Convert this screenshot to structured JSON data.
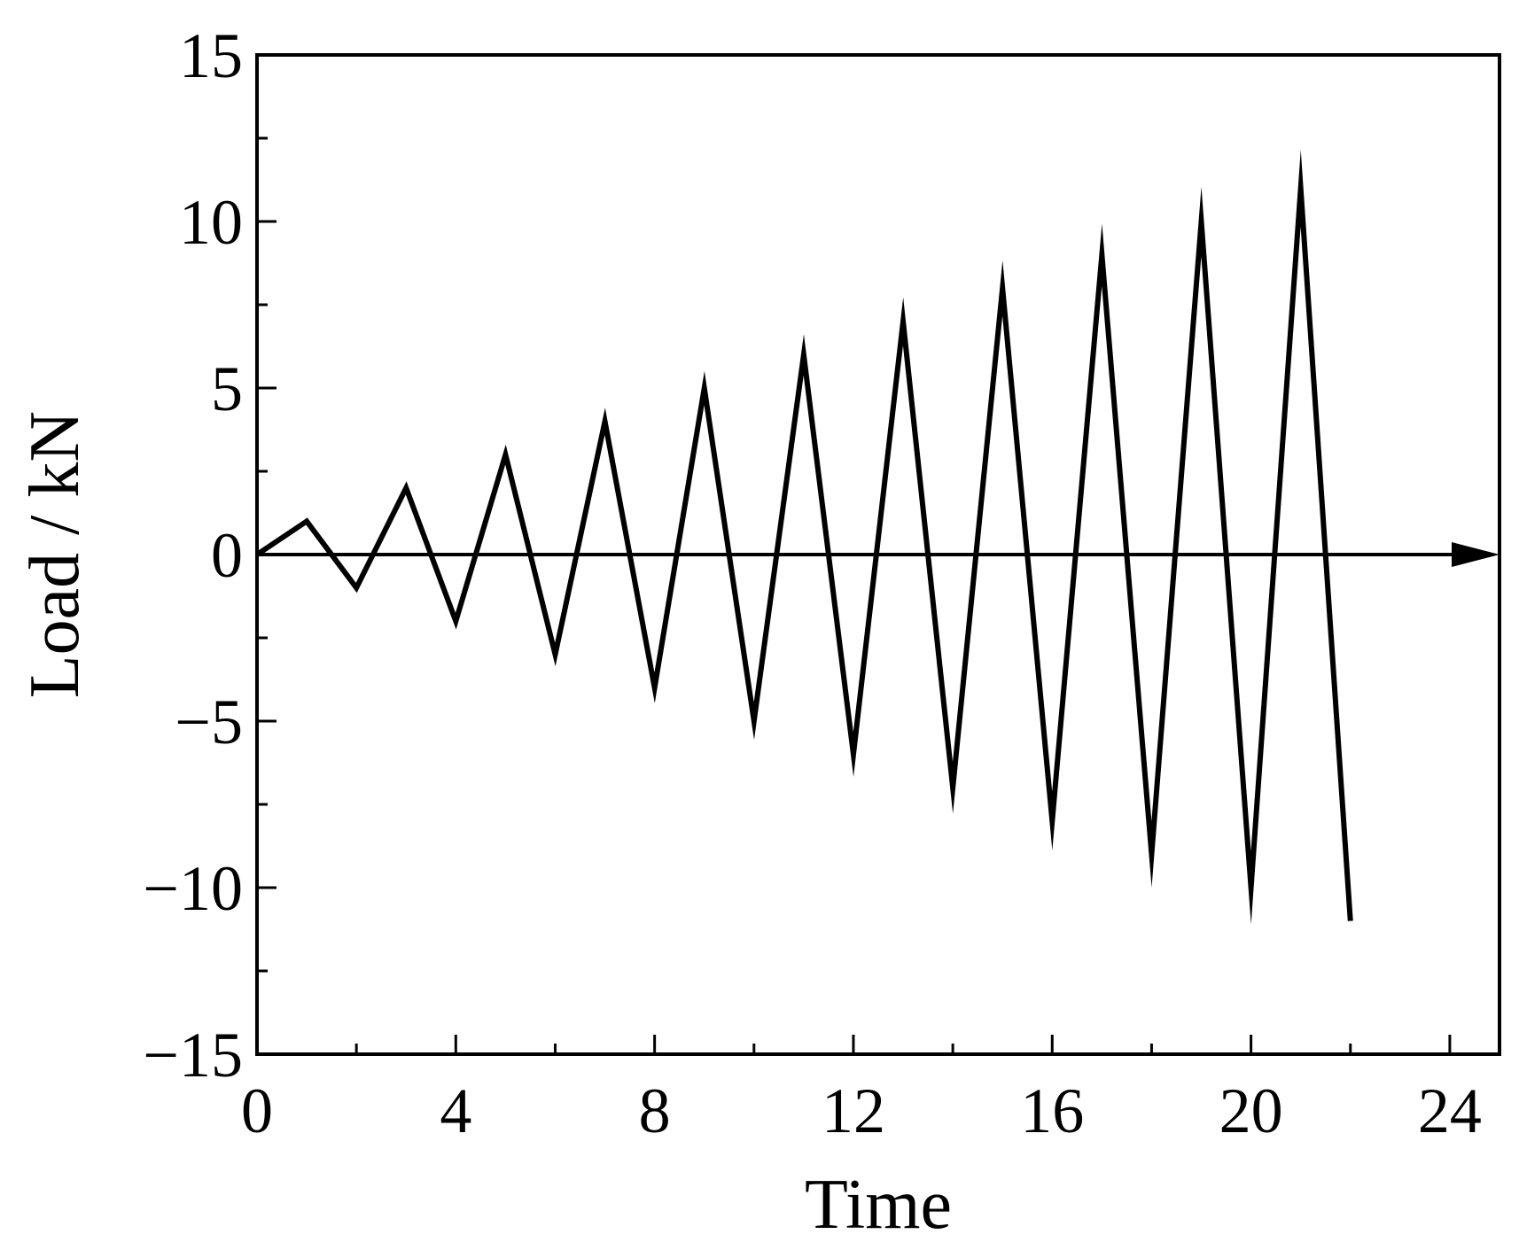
{
  "chart_data": {
    "type": "line",
    "title": "",
    "xlabel": "Time",
    "ylabel": "Load / kN",
    "xlim": [
      0,
      25
    ],
    "ylim": [
      -15,
      15
    ],
    "x_ticks": [
      0,
      4,
      8,
      12,
      16,
      20,
      24
    ],
    "x_tick_labels": [
      "0",
      "4",
      "8",
      "12",
      "16",
      "20",
      "24"
    ],
    "x_minor_ticks": [
      2,
      6,
      10,
      14,
      18,
      22
    ],
    "y_ticks": [
      -15,
      -10,
      -5,
      0,
      5,
      10,
      15
    ],
    "y_tick_labels": [
      "−15",
      "−10",
      "−5",
      "0",
      "5",
      "10",
      "15"
    ],
    "y_minor_ticks": [
      -12.5,
      -7.5,
      -2.5,
      2.5,
      7.5,
      12.5
    ],
    "grid": false,
    "legend": "none",
    "zero_line_arrow": true,
    "line_color": "#000000",
    "series": [
      {
        "x": [
          0,
          1,
          2,
          3,
          4,
          5,
          6,
          7,
          8,
          9,
          10,
          11,
          12,
          13,
          14,
          15,
          16,
          17,
          18,
          19,
          20,
          21,
          22
        ],
        "y": [
          0,
          1,
          -1,
          2,
          -2,
          3,
          -3,
          4,
          -4,
          5,
          -5,
          6,
          -6,
          7,
          -7,
          8,
          -8,
          9,
          -9,
          10,
          -10,
          11,
          -11
        ]
      }
    ]
  }
}
